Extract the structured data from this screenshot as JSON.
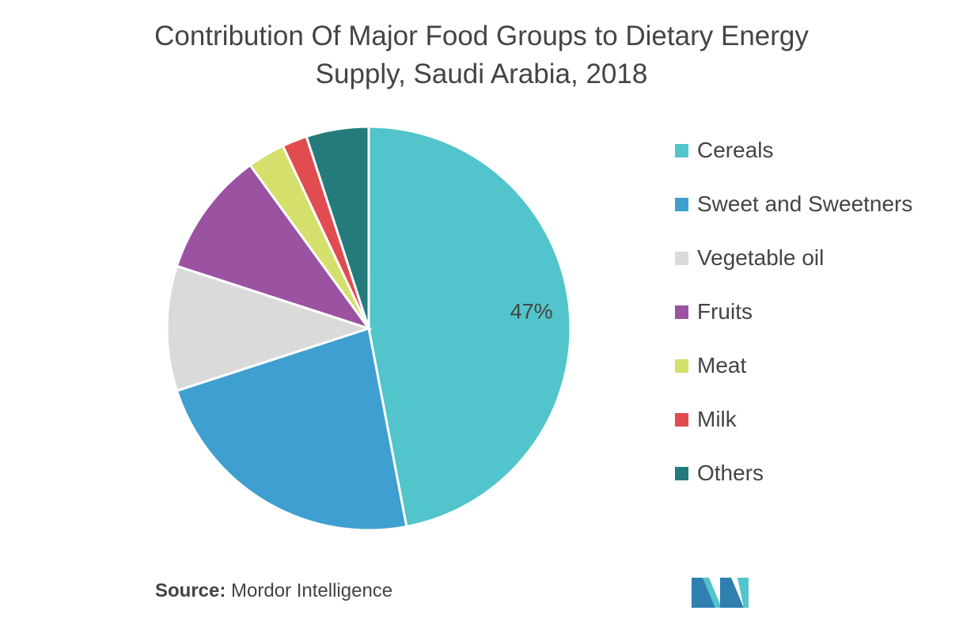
{
  "title_line1": "Contribution Of Major Food Groups to Dietary Energy",
  "title_line2": "Supply, Saudi Arabia, 2018",
  "source_label": "Source:",
  "source_text": "Mordor Intelligence",
  "chart_data": {
    "type": "pie",
    "title": "Contribution Of Major Food Groups to Dietary Energy Supply, Saudi Arabia, 2018",
    "legend_position": "right",
    "slices": [
      {
        "label": "Cereals",
        "value": 47,
        "color": "#52c4cb",
        "data_label": "47%"
      },
      {
        "label": "Sweet and Sweetners",
        "value": 23,
        "color": "#3e9fd0"
      },
      {
        "label": "Vegetable oil",
        "value": 10,
        "color": "#dadada"
      },
      {
        "label": "Fruits",
        "value": 10,
        "color": "#9b52a1"
      },
      {
        "label": "Meat",
        "value": 3,
        "color": "#d4e06b"
      },
      {
        "label": "Milk",
        "value": 2,
        "color": "#e04c4f"
      },
      {
        "label": "Others",
        "value": 5,
        "color": "#257a7b"
      }
    ]
  }
}
